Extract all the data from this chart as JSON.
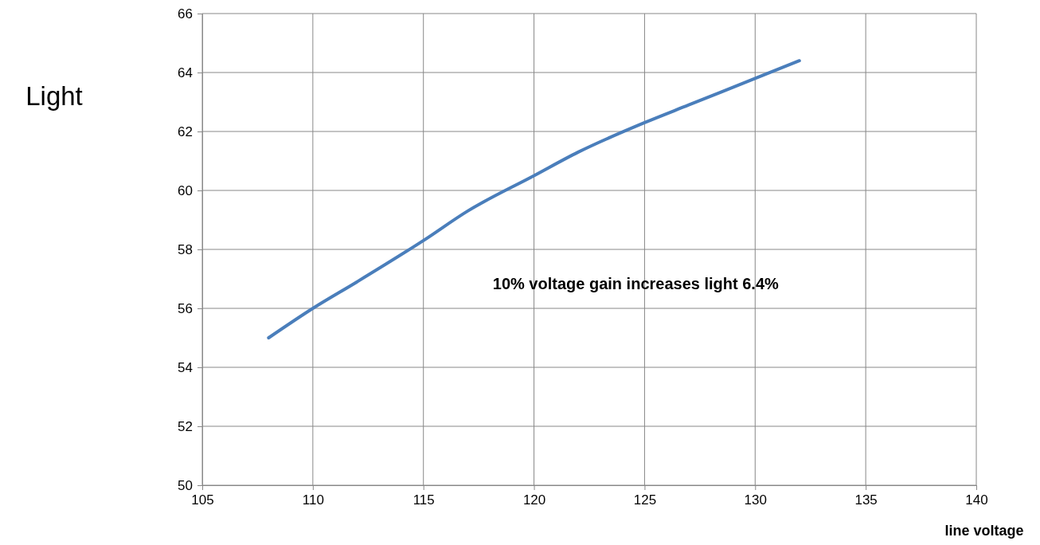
{
  "chart_data": {
    "type": "line",
    "xlabel": "line voltage",
    "ylabel": "Light",
    "annotations": [
      "10% voltage gain increases light 6.4%"
    ],
    "x": [
      108,
      110,
      112,
      115,
      117,
      120,
      122,
      125,
      127,
      130,
      132
    ],
    "series": [
      {
        "color": "#4a7ebb",
        "values": [
          55,
          56,
          56.9,
          58.3,
          59.3,
          60.5,
          61.3,
          62.3,
          62.9,
          63.8,
          64.4
        ]
      }
    ],
    "xlim": [
      105,
      140
    ],
    "xticks": [
      105,
      110,
      115,
      120,
      125,
      130,
      135,
      140
    ],
    "ylim": [
      50,
      66
    ],
    "yticks": [
      50,
      52,
      54,
      56,
      58,
      60,
      62,
      64,
      66
    ],
    "grid": true,
    "marker": "none",
    "line_style": "solid"
  }
}
